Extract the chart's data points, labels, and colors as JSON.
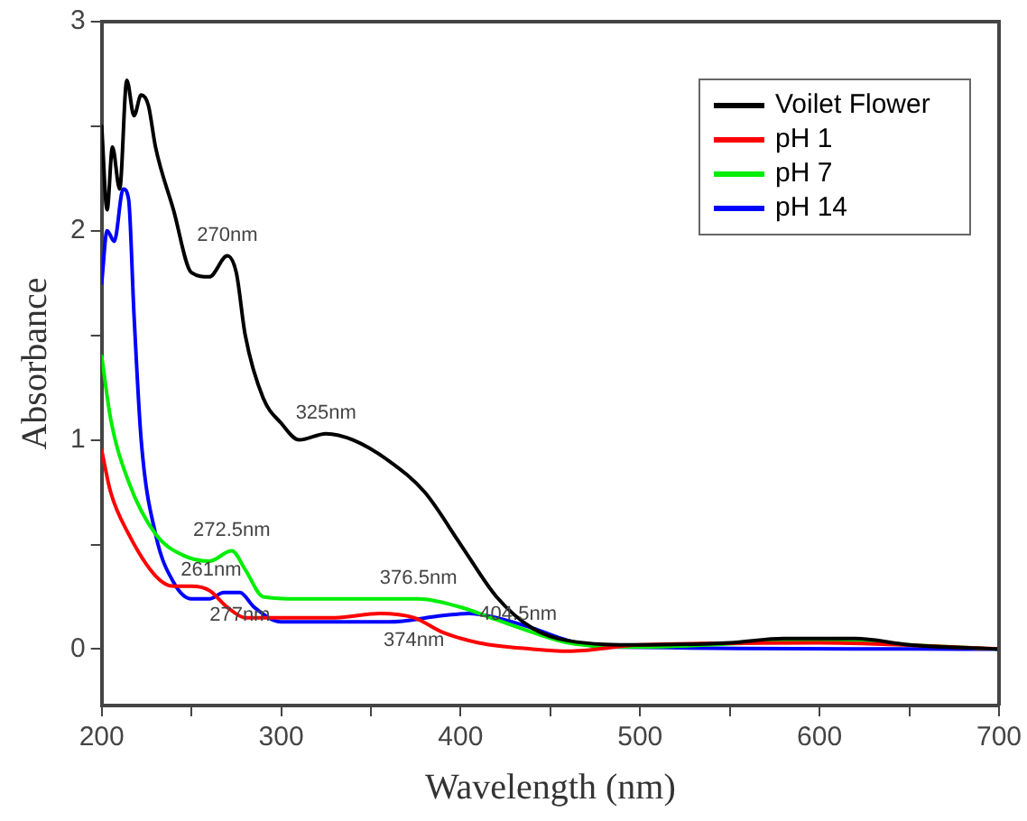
{
  "chart_data": {
    "type": "line",
    "xlabel": "Wavelength (nm)",
    "ylabel": "Absorbance",
    "xlim": [
      200,
      700
    ],
    "ylim": [
      -0.27,
      3
    ],
    "xticks": [
      200,
      {
        "value": 250,
        "label": null
      },
      300,
      {
        "value": 350,
        "label": null
      },
      400,
      {
        "value": 450,
        "label": null
      },
      500,
      {
        "value": 550,
        "label": null
      },
      600,
      {
        "value": 650,
        "label": null
      },
      700
    ],
    "yticks": [
      0,
      {
        "value": 0.5,
        "label": null
      },
      1,
      {
        "value": 1.5,
        "label": null
      },
      2,
      {
        "value": 2.5,
        "label": null
      },
      3
    ],
    "grid": false,
    "legend": "top right",
    "marker": "none",
    "line_style": "solid",
    "series": [
      {
        "name": "Voilet Flower",
        "color": "#000000",
        "x": [
          200,
          203,
          206,
          210,
          214,
          218,
          222,
          226,
          230,
          240,
          250,
          260,
          270,
          275,
          280,
          290,
          300,
          310,
          325,
          340,
          360,
          380,
          400,
          420,
          440,
          460,
          500,
          550,
          580,
          620,
          650,
          700
        ],
        "values": [
          2.5,
          2.1,
          2.4,
          2.2,
          2.72,
          2.55,
          2.65,
          2.6,
          2.4,
          2.1,
          1.8,
          1.78,
          1.88,
          1.8,
          1.5,
          1.2,
          1.08,
          1.0,
          1.03,
          1.0,
          0.9,
          0.75,
          0.5,
          0.25,
          0.1,
          0.04,
          0.02,
          0.03,
          0.05,
          0.05,
          0.02,
          0
        ]
      },
      {
        "name": "pH 1",
        "color": "#ff0000",
        "x": [
          200,
          205,
          215,
          230,
          240,
          250,
          260,
          270,
          280,
          300,
          330,
          355,
          374,
          390,
          410,
          440,
          460,
          500,
          600,
          700
        ],
        "values": [
          0.95,
          0.75,
          0.55,
          0.35,
          0.3,
          0.3,
          0.28,
          0.2,
          0.15,
          0.15,
          0.15,
          0.17,
          0.15,
          0.08,
          0.03,
          0,
          -0.01,
          0.02,
          0.03,
          0
        ]
      },
      {
        "name": "pH 7",
        "color": "#00ee00",
        "x": [
          200,
          205,
          215,
          230,
          245,
          260,
          272.5,
          280,
          290,
          310,
          350,
          376.5,
          400,
          420,
          440,
          460,
          500,
          600,
          650,
          700
        ],
        "values": [
          1.4,
          1.1,
          0.8,
          0.55,
          0.45,
          0.42,
          0.47,
          0.38,
          0.25,
          0.24,
          0.24,
          0.24,
          0.2,
          0.14,
          0.08,
          0.03,
          0.01,
          0.04,
          0.02,
          0
        ]
      },
      {
        "name": "pH 14",
        "color": "#0000ff",
        "x": [
          200,
          203,
          207,
          212,
          215,
          218,
          222,
          230,
          240,
          250,
          260,
          268,
          277,
          285,
          300,
          330,
          360,
          390,
          404.5,
          420,
          440,
          460,
          480,
          700
        ],
        "values": [
          1.75,
          2.0,
          1.95,
          2.2,
          2.15,
          1.6,
          1.0,
          0.55,
          0.32,
          0.24,
          0.24,
          0.27,
          0.27,
          0.2,
          0.13,
          0.13,
          0.13,
          0.16,
          0.17,
          0.15,
          0.1,
          0.04,
          0.01,
          0
        ]
      }
    ],
    "annotations": [
      {
        "text": "270nm",
        "x": 270,
        "y": 1.88
      },
      {
        "text": "325nm",
        "x": 325,
        "y": 1.03
      },
      {
        "text": "272.5nm",
        "x": 272.5,
        "y": 0.47
      },
      {
        "text": "261nm",
        "x": 261,
        "y": 0.28
      },
      {
        "text": "277nm",
        "x": 277,
        "y": 0.27
      },
      {
        "text": "376.5nm",
        "x": 376.5,
        "y": 0.24
      },
      {
        "text": "374nm",
        "x": 374,
        "y": 0.15
      },
      {
        "text": "404.5nm",
        "x": 404.5,
        "y": 0.17
      }
    ]
  }
}
